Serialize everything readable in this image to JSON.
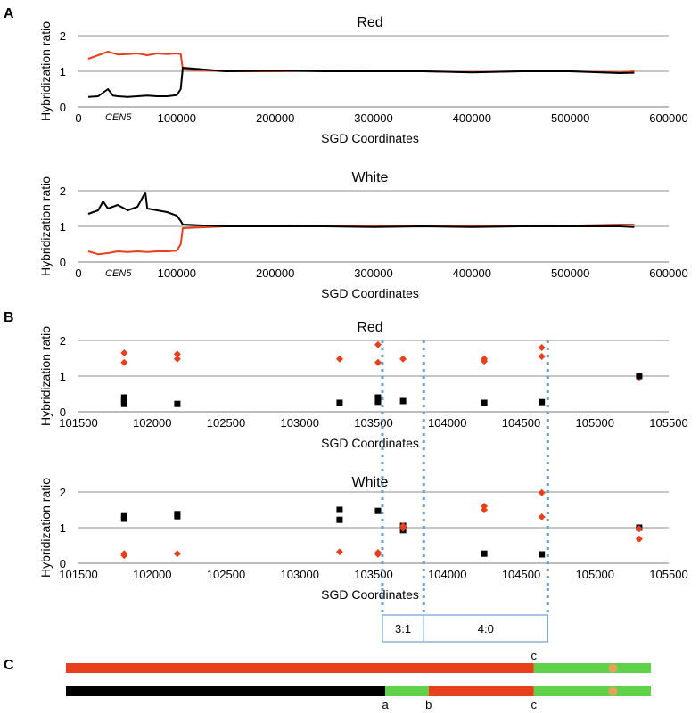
{
  "panels": {
    "A": "A",
    "B": "B",
    "C": "C"
  },
  "colors": {
    "red": "#e8401c",
    "black": "#000000",
    "green": "#5fd24a",
    "orange": "#e8a060",
    "dotted": "#6a9fd0",
    "grid": "#8c8c8c"
  },
  "markers": {
    "cen5": "CEN5"
  },
  "ratio_boxes": [
    {
      "label": "3:1",
      "from": 103560,
      "to": 103840
    },
    {
      "label": "4:0",
      "from": 103840,
      "to": 104680
    }
  ],
  "dotted_lines_x": [
    103560,
    103840,
    104680
  ],
  "chart_data": [
    {
      "type": "line",
      "title": "Red",
      "xlabel": "SGD Coordinates",
      "ylabel": "Hybridization ratio",
      "xlim": [
        0,
        600000
      ],
      "ylim": [
        0,
        2
      ],
      "xticks": [
        0,
        100000,
        200000,
        300000,
        400000,
        500000,
        600000
      ],
      "yticks": [
        0,
        1,
        2
      ],
      "series": [
        {
          "color": "red",
          "points": [
            [
              10000,
              1.35
            ],
            [
              20000,
              1.45
            ],
            [
              30000,
              1.55
            ],
            [
              40000,
              1.47
            ],
            [
              50000,
              1.48
            ],
            [
              60000,
              1.5
            ],
            [
              70000,
              1.45
            ],
            [
              80000,
              1.5
            ],
            [
              90000,
              1.48
            ],
            [
              100000,
              1.5
            ],
            [
              104000,
              1.48
            ],
            [
              106000,
              1.05
            ],
            [
              150000,
              1.0
            ],
            [
              200000,
              1.0
            ],
            [
              250000,
              1.02
            ],
            [
              300000,
              1.0
            ],
            [
              350000,
              1.0
            ],
            [
              400000,
              0.98
            ],
            [
              450000,
              1.0
            ],
            [
              500000,
              1.0
            ],
            [
              550000,
              0.97
            ],
            [
              565000,
              1.0
            ]
          ]
        },
        {
          "color": "black",
          "points": [
            [
              10000,
              0.28
            ],
            [
              20000,
              0.3
            ],
            [
              30000,
              0.5
            ],
            [
              35000,
              0.32
            ],
            [
              40000,
              0.3
            ],
            [
              50000,
              0.28
            ],
            [
              60000,
              0.3
            ],
            [
              70000,
              0.32
            ],
            [
              80000,
              0.3
            ],
            [
              90000,
              0.3
            ],
            [
              100000,
              0.33
            ],
            [
              104000,
              0.5
            ],
            [
              106000,
              1.1
            ],
            [
              150000,
              1.0
            ],
            [
              200000,
              1.02
            ],
            [
              250000,
              1.0
            ],
            [
              300000,
              1.0
            ],
            [
              350000,
              1.0
            ],
            [
              400000,
              0.97
            ],
            [
              450000,
              1.0
            ],
            [
              500000,
              1.0
            ],
            [
              550000,
              0.95
            ],
            [
              565000,
              0.96
            ]
          ]
        }
      ]
    },
    {
      "type": "line",
      "title": "White",
      "xlabel": "SGD Coordinates",
      "ylabel": "Hybridization ratio",
      "xlim": [
        0,
        600000
      ],
      "ylim": [
        0,
        2
      ],
      "xticks": [
        0,
        100000,
        200000,
        300000,
        400000,
        500000,
        600000
      ],
      "yticks": [
        0,
        1,
        2
      ],
      "series": [
        {
          "color": "red",
          "points": [
            [
              10000,
              0.3
            ],
            [
              20000,
              0.22
            ],
            [
              30000,
              0.25
            ],
            [
              40000,
              0.3
            ],
            [
              50000,
              0.28
            ],
            [
              60000,
              0.3
            ],
            [
              70000,
              0.28
            ],
            [
              80000,
              0.3
            ],
            [
              90000,
              0.3
            ],
            [
              100000,
              0.32
            ],
            [
              104000,
              0.5
            ],
            [
              106000,
              0.95
            ],
            [
              150000,
              1.0
            ],
            [
              200000,
              1.0
            ],
            [
              250000,
              1.02
            ],
            [
              300000,
              1.02
            ],
            [
              350000,
              1.0
            ],
            [
              400000,
              1.0
            ],
            [
              450000,
              1.0
            ],
            [
              500000,
              1.02
            ],
            [
              550000,
              1.05
            ],
            [
              565000,
              1.05
            ]
          ]
        },
        {
          "color": "black",
          "points": [
            [
              10000,
              1.35
            ],
            [
              20000,
              1.45
            ],
            [
              25000,
              1.7
            ],
            [
              30000,
              1.5
            ],
            [
              40000,
              1.6
            ],
            [
              50000,
              1.45
            ],
            [
              60000,
              1.55
            ],
            [
              68000,
              1.95
            ],
            [
              70000,
              1.5
            ],
            [
              80000,
              1.45
            ],
            [
              90000,
              1.4
            ],
            [
              100000,
              1.3
            ],
            [
              104000,
              1.15
            ],
            [
              106000,
              1.05
            ],
            [
              150000,
              1.0
            ],
            [
              200000,
              1.0
            ],
            [
              250000,
              1.0
            ],
            [
              300000,
              0.98
            ],
            [
              350000,
              1.0
            ],
            [
              400000,
              0.98
            ],
            [
              450000,
              1.0
            ],
            [
              500000,
              1.0
            ],
            [
              550000,
              1.0
            ],
            [
              565000,
              0.98
            ]
          ]
        }
      ]
    },
    {
      "type": "scatter",
      "title": "Red",
      "xlabel": "SGD Coordinates",
      "ylabel": "Hybridization ratio",
      "xlim": [
        101500,
        105500
      ],
      "ylim": [
        0,
        2
      ],
      "xticks": [
        101500,
        102000,
        102500,
        103000,
        103500,
        104000,
        104500,
        105000,
        105500
      ],
      "yticks": [
        0,
        1,
        2
      ],
      "series": [
        {
          "color": "red",
          "marker": "diamond",
          "points": [
            [
              101810,
              1.65
            ],
            [
              101810,
              1.38
            ],
            [
              102170,
              1.62
            ],
            [
              102170,
              1.48
            ],
            [
              103270,
              1.48
            ],
            [
              103530,
              1.88
            ],
            [
              103530,
              1.38
            ],
            [
              103700,
              1.48
            ],
            [
              104250,
              1.48
            ],
            [
              104250,
              1.42
            ],
            [
              104640,
              1.8
            ],
            [
              104640,
              1.55
            ],
            [
              105300,
              0.97
            ]
          ]
        },
        {
          "color": "black",
          "marker": "square",
          "points": [
            [
              101810,
              0.4
            ],
            [
              101810,
              0.3
            ],
            [
              101810,
              0.22
            ],
            [
              102170,
              0.22
            ],
            [
              103270,
              0.25
            ],
            [
              103530,
              0.4
            ],
            [
              103530,
              0.28
            ],
            [
              103700,
              0.3
            ],
            [
              104250,
              0.25
            ],
            [
              104640,
              0.27
            ],
            [
              105300,
              1.0
            ]
          ]
        }
      ]
    },
    {
      "type": "scatter",
      "title": "White",
      "xlabel": "SGD Coordinates",
      "ylabel": "Hybridization ratio",
      "xlim": [
        101500,
        105500
      ],
      "ylim": [
        0,
        2
      ],
      "xticks": [
        101500,
        102000,
        102500,
        103000,
        103500,
        104000,
        104500,
        105000,
        105500
      ],
      "yticks": [
        0,
        1,
        2
      ],
      "series": [
        {
          "color": "black",
          "marker": "square",
          "points": [
            [
              101810,
              1.32
            ],
            [
              101810,
              1.25
            ],
            [
              102170,
              1.38
            ],
            [
              102170,
              1.32
            ],
            [
              103270,
              1.5
            ],
            [
              103270,
              1.22
            ],
            [
              103530,
              1.47
            ],
            [
              103700,
              1.05
            ],
            [
              103700,
              0.93
            ],
            [
              104250,
              0.27
            ],
            [
              104640,
              0.25
            ],
            [
              105300,
              1.0
            ]
          ]
        },
        {
          "color": "red",
          "marker": "diamond",
          "points": [
            [
              101810,
              0.27
            ],
            [
              101810,
              0.22
            ],
            [
              102170,
              0.27
            ],
            [
              103270,
              0.32
            ],
            [
              103530,
              0.3
            ],
            [
              103530,
              0.25
            ],
            [
              103700,
              1.05
            ],
            [
              103700,
              0.98
            ],
            [
              104250,
              1.6
            ],
            [
              104250,
              1.5
            ],
            [
              104640,
              1.98
            ],
            [
              104640,
              1.3
            ],
            [
              105300,
              0.97
            ],
            [
              105300,
              0.68
            ]
          ]
        }
      ]
    }
  ],
  "chromosomes": [
    {
      "segments": [
        {
          "color": "red",
          "from": 0,
          "to": 0.8
        },
        {
          "color": "green",
          "from": 0.8,
          "to": 1
        }
      ],
      "marks": [
        {
          "label": "c",
          "at": 0.8
        }
      ],
      "dot_at": 0.935
    },
    {
      "segments": [
        {
          "color": "black",
          "from": 0,
          "to": 0.546
        },
        {
          "color": "green",
          "from": 0.546,
          "to": 0.62
        },
        {
          "color": "red",
          "from": 0.62,
          "to": 0.8
        },
        {
          "color": "green",
          "from": 0.8,
          "to": 1
        }
      ],
      "marks": [
        {
          "label": "a",
          "at": 0.546
        },
        {
          "label": "b",
          "at": 0.62
        },
        {
          "label": "c",
          "at": 0.8
        }
      ],
      "dot_at": 0.935
    }
  ]
}
